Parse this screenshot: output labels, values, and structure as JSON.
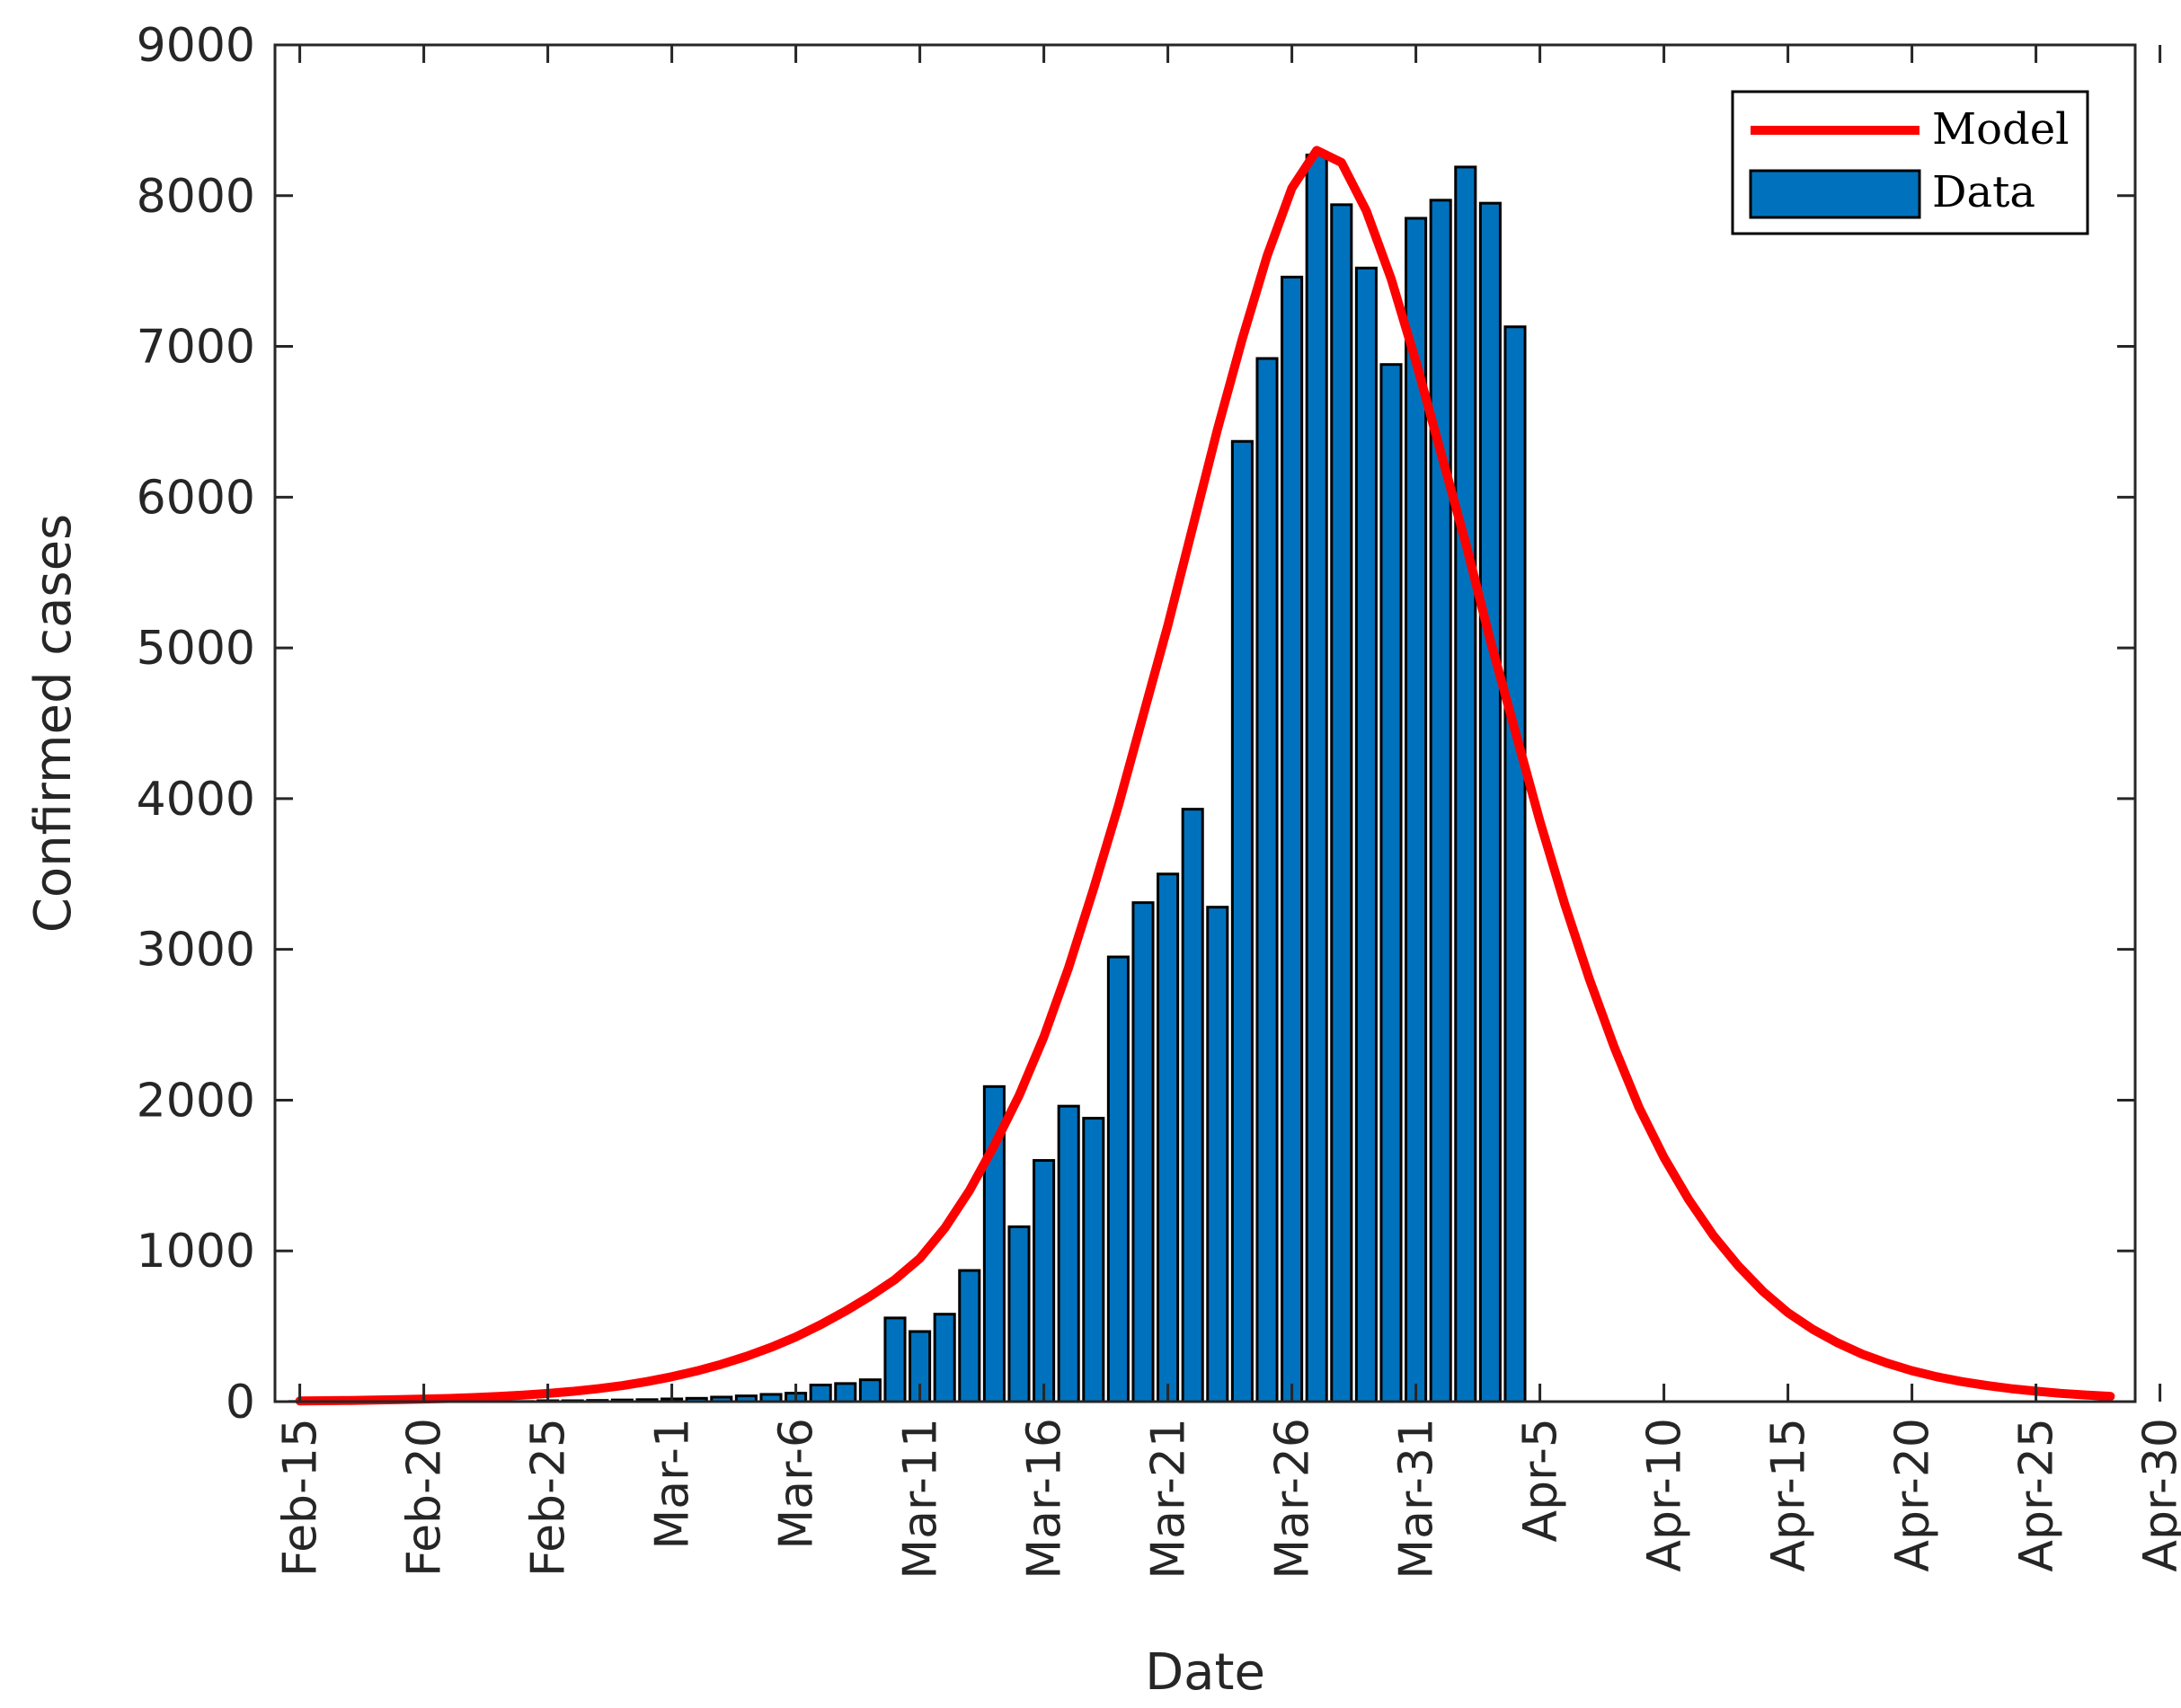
{
  "chart_data": {
    "type": "bar",
    "xlabel": "Date",
    "ylabel": "Confirmed cases",
    "ylim": [
      0,
      9000
    ],
    "xlim": [
      -1,
      74
    ],
    "yticks": [
      0,
      1000,
      2000,
      3000,
      4000,
      5000,
      6000,
      7000,
      8000,
      9000
    ],
    "xticks": [
      {
        "day": 0,
        "label": "Feb-15"
      },
      {
        "day": 5,
        "label": "Feb-20"
      },
      {
        "day": 10,
        "label": "Feb-25"
      },
      {
        "day": 15,
        "label": "Mar-1"
      },
      {
        "day": 20,
        "label": "Mar-6"
      },
      {
        "day": 25,
        "label": "Mar-11"
      },
      {
        "day": 30,
        "label": "Mar-16"
      },
      {
        "day": 35,
        "label": "Mar-21"
      },
      {
        "day": 40,
        "label": "Mar-26"
      },
      {
        "day": 45,
        "label": "Mar-31"
      },
      {
        "day": 50,
        "label": "Apr-5"
      },
      {
        "day": 55,
        "label": "Apr-10"
      },
      {
        "day": 60,
        "label": "Apr-15"
      },
      {
        "day": 65,
        "label": "Apr-20"
      },
      {
        "day": 70,
        "label": "Apr-25"
      },
      {
        "day": 75,
        "label": "Apr-30"
      }
    ],
    "grid": false,
    "legend": {
      "position": "top-right",
      "model_label": "Model",
      "data_label": "Data"
    },
    "colors": {
      "model": "#ff0000",
      "data": "#0072bd",
      "bar_edge": "#000000",
      "axis": "#262626"
    },
    "series": [
      {
        "name": "Data",
        "type": "bar",
        "x": [
          0,
          1,
          2,
          3,
          4,
          5,
          6,
          7,
          8,
          9,
          10,
          11,
          12,
          13,
          14,
          15,
          16,
          17,
          18,
          19,
          20,
          21,
          22,
          23,
          24,
          25,
          26,
          27,
          28,
          29,
          30,
          31,
          32,
          33,
          34,
          35,
          36,
          37,
          38,
          39,
          40,
          41,
          42,
          43,
          44,
          45,
          46,
          47,
          48,
          49
        ],
        "values": [
          1,
          1,
          0,
          2,
          3,
          2,
          1,
          3,
          2,
          1,
          6,
          6,
          8,
          11,
          13,
          18,
          22,
          30,
          38,
          48,
          56,
          110,
          120,
          145,
          555,
          465,
          580,
          870,
          2090,
          1160,
          1600,
          1960,
          1880,
          2950,
          3310,
          3500,
          3930,
          3280,
          6370,
          6920,
          7460,
          8270,
          7940,
          7520,
          6880,
          7850,
          7970,
          8190,
          7950,
          7130
        ]
      },
      {
        "name": "Model",
        "type": "line",
        "x": [
          0,
          1,
          2,
          3,
          4,
          5,
          6,
          7,
          8,
          9,
          10,
          11,
          12,
          13,
          14,
          15,
          16,
          17,
          18,
          19,
          20,
          21,
          22,
          23,
          24,
          25,
          26,
          27,
          28,
          29,
          30,
          31,
          32,
          33,
          34,
          35,
          36,
          37,
          38,
          39,
          40,
          41,
          42,
          43,
          44,
          45,
          46,
          47,
          48,
          49,
          50,
          51,
          52,
          53,
          54,
          55,
          56,
          57,
          58,
          59,
          60,
          61,
          62,
          63,
          64,
          65,
          66,
          67,
          68,
          69,
          70,
          71,
          72,
          73
        ],
        "values": [
          5,
          6,
          8,
          10,
          13,
          17,
          21,
          27,
          34,
          43,
          54,
          68,
          85,
          106,
          133,
          165,
          203,
          248,
          300,
          360,
          429,
          510,
          600,
          700,
          810,
          950,
          1150,
          1400,
          1700,
          2030,
          2420,
          2880,
          3400,
          3950,
          4550,
          5150,
          5800,
          6450,
          7050,
          7600,
          8050,
          8300,
          8220,
          7900,
          7450,
          6900,
          6300,
          5700,
          5050,
          4450,
          3850,
          3300,
          2800,
          2350,
          1950,
          1620,
          1340,
          1100,
          900,
          730,
          590,
          480,
          390,
          315,
          255,
          205,
          165,
          133,
          107,
          86,
          69,
          55,
          44,
          35
        ]
      }
    ]
  }
}
